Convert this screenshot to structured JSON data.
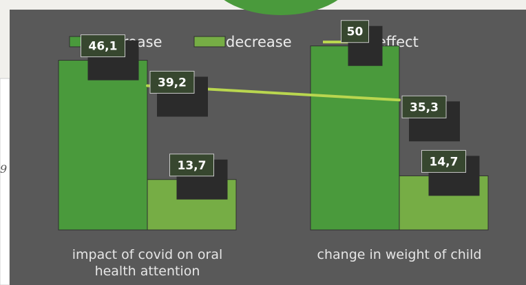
{
  "chart_data": {
    "type": "bar",
    "title": "",
    "xlabel": "",
    "ylabel": "",
    "ylim": [
      0,
      55
    ],
    "grid": false,
    "legend_position": "top",
    "categories": [
      "impact of covid on oral health attention",
      "change in weight of child"
    ],
    "category_lines": [
      [
        "impact of covid on oral",
        "health attention"
      ],
      [
        "change in weight of child"
      ]
    ],
    "series": [
      {
        "name": "increase",
        "kind": "bar",
        "values": [
          46.1,
          50
        ],
        "labels": [
          "46,1",
          "50"
        ],
        "color": "#4a9a3c"
      },
      {
        "name": "decrease",
        "kind": "bar",
        "values": [
          13.7,
          14.7
        ],
        "labels": [
          "13,7",
          "14,7"
        ],
        "color": "#76ad45"
      },
      {
        "name": "no effect",
        "kind": "line",
        "values": [
          39.2,
          35.3
        ],
        "labels": [
          "39,2",
          "35,3"
        ],
        "color": "#b9d64f"
      }
    ],
    "colors": {
      "panel": "#595959",
      "label_box": "#37472f",
      "text": "#e6e6e6"
    }
  },
  "background": {
    "side_number": "9"
  }
}
